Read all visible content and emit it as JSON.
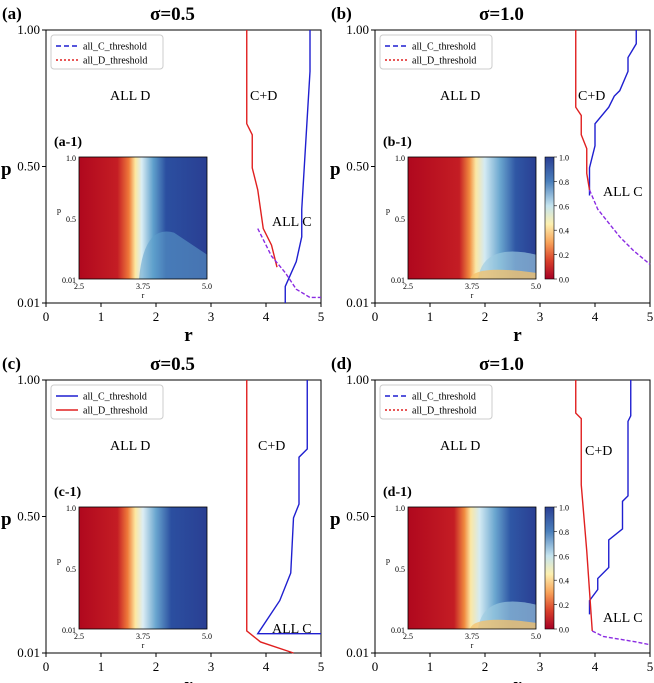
{
  "figure": {
    "panels": [
      {
        "label": "(a)",
        "title": "σ=0.5",
        "inset_label": "(a-1)",
        "legend": [
          {
            "text": "all_C_threshold",
            "color": "#1f1fd0",
            "dash": "5,3"
          },
          {
            "text": "all_D_threshold",
            "color": "#e02020",
            "dash": "2,2"
          }
        ],
        "regions": {
          "left": "ALL D",
          "mid": "C+D",
          "right": "ALL C"
        }
      },
      {
        "label": "(b)",
        "title": "σ=1.0",
        "inset_label": "(b-1)",
        "legend": [
          {
            "text": "all_C_threshold",
            "color": "#1f1fd0",
            "dash": "5,3"
          },
          {
            "text": "all_D_threshold",
            "color": "#e02020",
            "dash": "2,2"
          }
        ],
        "regions": {
          "left": "ALL D",
          "mid": "C+D",
          "right": "ALL C"
        }
      },
      {
        "label": "(c)",
        "title": "σ=0.5",
        "inset_label": "(c-1)",
        "legend": [
          {
            "text": "all_C_threshold",
            "color": "#1f1fd0",
            "dash": ""
          },
          {
            "text": "all_D_threshold",
            "color": "#e02020",
            "dash": ""
          }
        ],
        "regions": {
          "left": "ALL D",
          "mid": "C+D",
          "right": "ALL C"
        }
      },
      {
        "label": "(d)",
        "title": "σ=1.0",
        "inset_label": "(d-1)",
        "legend": [
          {
            "text": "all_C_threshold",
            "color": "#1f1fd0",
            "dash": "5,3"
          },
          {
            "text": "all_D_threshold",
            "color": "#e02020",
            "dash": "2,2"
          }
        ],
        "regions": {
          "left": "ALL D",
          "mid": "C+D",
          "right": "ALL C"
        }
      }
    ],
    "colorbar_ticks": [
      "1.0",
      "0.8",
      "0.6",
      "0.4",
      "0.2",
      "0.0"
    ]
  },
  "chart_data": [
    {
      "panel": "a",
      "type": "line",
      "title": "σ=0.5",
      "xlabel": "r",
      "ylabel": "p",
      "xlim": [
        0,
        5
      ],
      "ylim": [
        0.01,
        1.0
      ],
      "xticks": [
        "0",
        "1",
        "2",
        "3",
        "4",
        "5"
      ],
      "yticks": [
        "0.01",
        "0.50",
        "1.00"
      ],
      "series": [
        {
          "name": "all_C_threshold",
          "x": [
            4.35,
            4.35,
            4.55,
            4.65,
            4.65,
            4.8,
            4.8
          ],
          "y": [
            0.01,
            0.07,
            0.16,
            0.25,
            0.35,
            0.85,
            1.0
          ]
        },
        {
          "name": "all_D_threshold",
          "x": [
            3.65,
            3.65,
            3.75,
            3.75,
            3.85,
            3.9,
            3.95,
            4.1,
            4.2
          ],
          "y": [
            1.0,
            0.66,
            0.62,
            0.5,
            0.42,
            0.35,
            0.28,
            0.22,
            0.14
          ]
        },
        {
          "name": "all_C_threshold (overlap)",
          "x": [
            3.85,
            4.0,
            4.1,
            4.35,
            4.55,
            4.8,
            5.0
          ],
          "y": [
            0.28,
            0.22,
            0.18,
            0.12,
            0.06,
            0.03,
            0.03
          ]
        }
      ],
      "inset": {
        "label": "(a-1)",
        "x_range": [
          2.5,
          5.0
        ],
        "y_range": [
          0.01,
          1.0
        ],
        "xticks": [
          "2.5",
          "3.75",
          "5.0"
        ],
        "yticks": [
          "1.0",
          "0.5",
          "0.01"
        ],
        "xlabel": "r",
        "ylabel": "p"
      }
    },
    {
      "panel": "b",
      "type": "line",
      "title": "σ=1.0",
      "xlabel": "r",
      "ylabel": "p",
      "xlim": [
        0,
        5
      ],
      "ylim": [
        0.01,
        1.0
      ],
      "xticks": [
        "0",
        "1",
        "2",
        "3",
        "4",
        "5"
      ],
      "yticks": [
        "0.01",
        "0.50",
        "1.00"
      ],
      "series": [
        {
          "name": "all_C_threshold",
          "x": [
            3.9,
            3.9,
            4.0,
            4.0,
            4.25,
            4.35,
            4.45,
            4.6,
            4.6,
            4.75,
            4.75
          ],
          "y": [
            0.4,
            0.5,
            0.58,
            0.66,
            0.72,
            0.76,
            0.78,
            0.85,
            0.9,
            0.95,
            1.0
          ]
        },
        {
          "name": "all_D_threshold",
          "x": [
            3.65,
            3.65,
            3.75,
            3.75,
            3.85,
            3.85,
            3.9
          ],
          "y": [
            1.0,
            0.72,
            0.69,
            0.62,
            0.57,
            0.48,
            0.42
          ]
        },
        {
          "name": "all_C_threshold (overlap)",
          "x": [
            3.9,
            4.05,
            4.25,
            4.45,
            4.7,
            5.0
          ],
          "y": [
            0.42,
            0.35,
            0.3,
            0.25,
            0.2,
            0.15
          ]
        }
      ],
      "inset": {
        "label": "(b-1)",
        "x_range": [
          2.5,
          5.0
        ],
        "y_range": [
          0.01,
          1.0
        ],
        "xticks": [
          "2.5",
          "3.75",
          "5.0"
        ],
        "yticks": [
          "1.0",
          "0.5",
          "0.01"
        ],
        "xlabel": "r",
        "ylabel": "p",
        "colorbar": [
          0.0,
          1.0
        ]
      }
    },
    {
      "panel": "c",
      "type": "line",
      "title": "σ=0.5",
      "xlabel": "r",
      "ylabel": "p",
      "xlim": [
        0,
        5
      ],
      "ylim": [
        0.01,
        1.0
      ],
      "xticks": [
        "0",
        "1",
        "2",
        "3",
        "4",
        "5"
      ],
      "yticks": [
        "0.01",
        "0.50",
        "1.00"
      ],
      "series": [
        {
          "name": "all_C_threshold",
          "x": [
            5.0,
            3.85,
            4.25,
            4.45,
            4.5,
            4.6,
            4.6,
            4.75,
            4.75
          ],
          "y": [
            0.08,
            0.08,
            0.2,
            0.3,
            0.5,
            0.55,
            0.72,
            0.75,
            1.0
          ]
        },
        {
          "name": "all_D_threshold",
          "x": [
            3.65,
            3.65,
            3.9,
            4.5
          ],
          "y": [
            1.0,
            0.09,
            0.05,
            0.01
          ]
        }
      ]
    },
    {
      "panel": "d",
      "type": "line",
      "title": "σ=1.0",
      "xlabel": "r",
      "ylabel": "p",
      "xlim": [
        0,
        5
      ],
      "ylim": [
        0.01,
        1.0
      ],
      "xticks": [
        "0",
        "1",
        "2",
        "3",
        "4",
        "5"
      ],
      "yticks": [
        "0.01",
        "0.50",
        "1.00"
      ],
      "series": [
        {
          "name": "all_C_threshold",
          "x": [
            3.9,
            3.9,
            4.05,
            4.05,
            4.25,
            4.25,
            4.5,
            4.5,
            4.6,
            4.6,
            4.65,
            4.65
          ],
          "y": [
            0.15,
            0.2,
            0.24,
            0.28,
            0.32,
            0.42,
            0.46,
            0.56,
            0.58,
            0.85,
            0.87,
            1.0
          ]
        },
        {
          "name": "all_D_threshold",
          "x": [
            3.65,
            3.65,
            3.75,
            3.75,
            3.85,
            3.95
          ],
          "y": [
            1.0,
            0.88,
            0.86,
            0.62,
            0.38,
            0.09
          ]
        },
        {
          "name": "all_C_threshold (overlap)",
          "x": [
            3.95,
            4.15,
            4.45,
            4.75,
            5.0
          ],
          "y": [
            0.09,
            0.07,
            0.06,
            0.05,
            0.04
          ]
        }
      ],
      "inset": {
        "label": "(d-1)",
        "x_range": [
          2.5,
          5.0
        ],
        "y_range": [
          0.01,
          1.0
        ],
        "xticks": [
          "2.5",
          "3.75",
          "5.0"
        ],
        "yticks": [
          "1.0",
          "0.5",
          "0.01"
        ],
        "xlabel": "r",
        "ylabel": "p",
        "colorbar": [
          0.0,
          1.0
        ]
      }
    }
  ]
}
